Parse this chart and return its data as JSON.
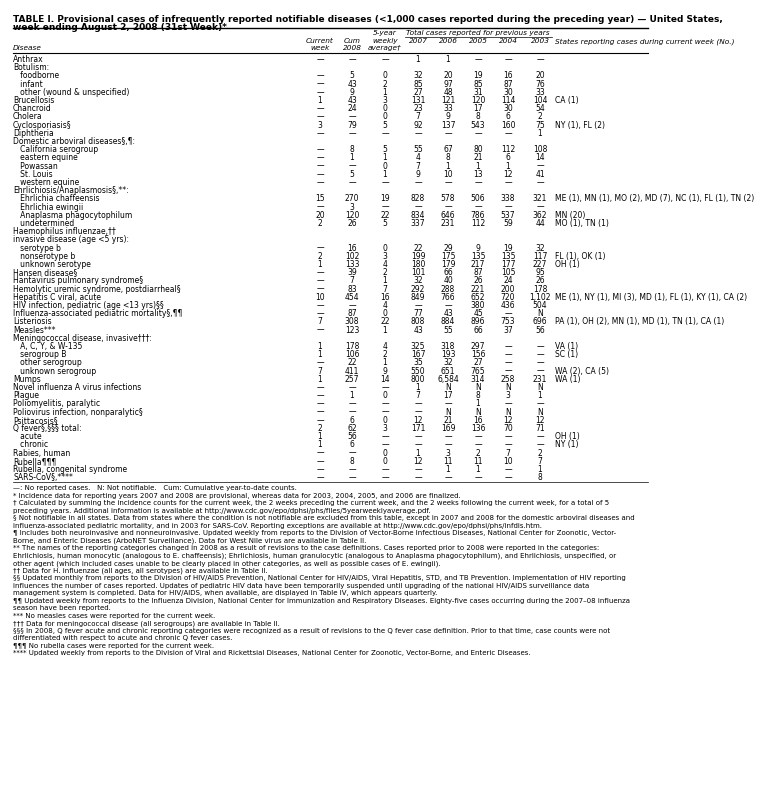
{
  "title1": "TABLE I. Provisional cases of infrequently reported notifiable diseases (<1,000 cases reported during the preceding year) — United States,",
  "title2": "week ending August 2, 2008 (31st Week)*",
  "col_headers_line1": [
    "",
    "Current",
    "Cum",
    "5-year",
    "Total cases reported for previous years",
    "",
    "",
    "",
    "",
    "States reporting cases during current week (No.)"
  ],
  "col_headers_line2": [
    "Disease",
    "week",
    "2008",
    "weekly",
    "2007",
    "2006",
    "2005",
    "2004",
    "2003",
    ""
  ],
  "col_headers_line3": [
    "",
    "",
    "",
    "average†",
    "",
    "",
    "",
    "",
    "",
    ""
  ],
  "rows": [
    [
      "Anthrax",
      "—",
      "—",
      "—",
      "1",
      "1",
      "—",
      "—",
      "—",
      ""
    ],
    [
      "Botulism:",
      "",
      "",
      "",
      "",
      "",
      "",
      "",
      "",
      ""
    ],
    [
      "   foodborne",
      "—",
      "5",
      "0",
      "32",
      "20",
      "19",
      "16",
      "20",
      ""
    ],
    [
      "   infant",
      "—",
      "43",
      "2",
      "85",
      "97",
      "85",
      "87",
      "76",
      ""
    ],
    [
      "   other (wound & unspecified)",
      "—",
      "9",
      "1",
      "27",
      "48",
      "31",
      "30",
      "33",
      ""
    ],
    [
      "Brucellosis",
      "1",
      "43",
      "3",
      "131",
      "121",
      "120",
      "114",
      "104",
      "CA (1)"
    ],
    [
      "Chancroid",
      "—",
      "24",
      "0",
      "23",
      "33",
      "17",
      "30",
      "54",
      ""
    ],
    [
      "Cholera",
      "—",
      "—",
      "0",
      "7",
      "9",
      "8",
      "6",
      "2",
      ""
    ],
    [
      "Cyclosporiasis§",
      "3",
      "79",
      "5",
      "92",
      "137",
      "543",
      "160",
      "75",
      "NY (1), FL (2)"
    ],
    [
      "Diphtheria",
      "—",
      "—",
      "—",
      "—",
      "—",
      "—",
      "—",
      "1",
      ""
    ],
    [
      "Domestic arboviral diseases§,¶:",
      "",
      "",
      "",
      "",
      "",
      "",
      "",
      "",
      ""
    ],
    [
      "   California serogroup",
      "—",
      "8",
      "5",
      "55",
      "67",
      "80",
      "112",
      "108",
      ""
    ],
    [
      "   eastern equine",
      "—",
      "1",
      "1",
      "4",
      "8",
      "21",
      "6",
      "14",
      ""
    ],
    [
      "   Powassan",
      "—",
      "—",
      "0",
      "7",
      "1",
      "1",
      "1",
      "—",
      ""
    ],
    [
      "   St. Louis",
      "—",
      "5",
      "1",
      "9",
      "10",
      "13",
      "12",
      "41",
      ""
    ],
    [
      "   western equine",
      "—",
      "—",
      "—",
      "—",
      "—",
      "—",
      "—",
      "—",
      ""
    ],
    [
      "Ehrlichiosis/Anaplasmosis§,**:",
      "",
      "",
      "",
      "",
      "",
      "",
      "",
      "",
      ""
    ],
    [
      "   Ehrlichia chaffeensis",
      "15",
      "270",
      "19",
      "828",
      "578",
      "506",
      "338",
      "321",
      "ME (1), MN (1), MO (2), MD (7), NC (1), FL (1), TN (2)"
    ],
    [
      "   Ehrlichia ewingii",
      "—",
      "3",
      "—",
      "—",
      "—",
      "—",
      "—",
      "—",
      ""
    ],
    [
      "   Anaplasma phagocytophilum",
      "20",
      "120",
      "22",
      "834",
      "646",
      "786",
      "537",
      "362",
      "MN (20)"
    ],
    [
      "   undetermined",
      "2",
      "26",
      "5",
      "337",
      "231",
      "112",
      "59",
      "44",
      "MO (1), TN (1)"
    ],
    [
      "Haemophilus influenzae,††",
      "",
      "",
      "",
      "",
      "",
      "",
      "",
      "",
      ""
    ],
    [
      "invasive disease (age <5 yrs):",
      "",
      "",
      "",
      "",
      "",
      "",
      "",
      "",
      ""
    ],
    [
      "   serotype b",
      "—",
      "16",
      "0",
      "22",
      "29",
      "9",
      "19",
      "32",
      ""
    ],
    [
      "   nonserotype b",
      "2",
      "102",
      "3",
      "199",
      "175",
      "135",
      "135",
      "117",
      "FL (1), OK (1)"
    ],
    [
      "   unknown serotype",
      "1",
      "133",
      "4",
      "180",
      "179",
      "217",
      "177",
      "227",
      "OH (1)"
    ],
    [
      "Hansen disease§",
      "—",
      "39",
      "2",
      "101",
      "66",
      "87",
      "105",
      "95",
      ""
    ],
    [
      "Hantavirus pulmonary syndrome§",
      "—",
      "7",
      "1",
      "32",
      "40",
      "26",
      "24",
      "26",
      ""
    ],
    [
      "Hemolytic uremic syndrome, postdiarrheal§",
      "—",
      "83",
      "7",
      "292",
      "288",
      "221",
      "200",
      "178",
      ""
    ],
    [
      "Hepatitis C viral, acute",
      "10",
      "454",
      "16",
      "849",
      "766",
      "652",
      "720",
      "1,102",
      "ME (1), NY (1), MI (3), MD (1), FL (1), KY (1), CA (2)"
    ],
    [
      "HIV infection, pediatric (age <13 yrs)§§",
      "—",
      "—",
      "4",
      "—",
      "—",
      "380",
      "436",
      "504",
      ""
    ],
    [
      "Influenza-associated pediatric mortality§,¶¶",
      "—",
      "87",
      "0",
      "77",
      "43",
      "45",
      "—",
      "N",
      ""
    ],
    [
      "Listeriosis",
      "7",
      "308",
      "22",
      "808",
      "884",
      "896",
      "753",
      "696",
      "PA (1), OH (2), MN (1), MD (1), TN (1), CA (1)"
    ],
    [
      "Measles***",
      "—",
      "123",
      "1",
      "43",
      "55",
      "66",
      "37",
      "56",
      ""
    ],
    [
      "Meningococcal disease, invasive†††:",
      "",
      "",
      "",
      "",
      "",
      "",
      "",
      "",
      ""
    ],
    [
      "   A, C, Y, & W-135",
      "1",
      "178",
      "4",
      "325",
      "318",
      "297",
      "—",
      "—",
      "VA (1)"
    ],
    [
      "   serogroup B",
      "1",
      "106",
      "2",
      "167",
      "193",
      "156",
      "—",
      "—",
      "SC (1)"
    ],
    [
      "   other serogroup",
      "—",
      "22",
      "1",
      "35",
      "32",
      "27",
      "—",
      "—",
      ""
    ],
    [
      "   unknown serogroup",
      "7",
      "411",
      "9",
      "550",
      "651",
      "765",
      "—",
      "—",
      "WA (2), CA (5)"
    ],
    [
      "Mumps",
      "1",
      "257",
      "14",
      "800",
      "6,584",
      "314",
      "258",
      "231",
      "WA (1)"
    ],
    [
      "Novel influenza A virus infections",
      "—",
      "—",
      "—",
      "1",
      "N",
      "N",
      "N",
      "N",
      ""
    ],
    [
      "Plague",
      "—",
      "1",
      "0",
      "7",
      "17",
      "8",
      "3",
      "1",
      ""
    ],
    [
      "Poliomyelitis, paralytic",
      "—",
      "—",
      "—",
      "—",
      "—",
      "1",
      "—",
      "—",
      ""
    ],
    [
      "Poliovirus infection, nonparalytic§",
      "—",
      "—",
      "—",
      "—",
      "N",
      "N",
      "N",
      "N",
      ""
    ],
    [
      "Psittacosis§",
      "—",
      "6",
      "0",
      "12",
      "21",
      "16",
      "12",
      "12",
      ""
    ],
    [
      "Q fever§,§§§ total:",
      "2",
      "62",
      "3",
      "171",
      "169",
      "136",
      "70",
      "71",
      ""
    ],
    [
      "   acute",
      "1",
      "56",
      "—",
      "—",
      "—",
      "—",
      "—",
      "—",
      "OH (1)"
    ],
    [
      "   chronic",
      "1",
      "6",
      "—",
      "—",
      "—",
      "—",
      "—",
      "—",
      "NY (1)"
    ],
    [
      "Rabies, human",
      "—",
      "—",
      "0",
      "1",
      "3",
      "2",
      "7",
      "2",
      ""
    ],
    [
      "Rubella¶¶¶",
      "—",
      "8",
      "0",
      "12",
      "11",
      "11",
      "10",
      "7",
      ""
    ],
    [
      "Rubella, congenital syndrome",
      "—",
      "—",
      "—",
      "—",
      "1",
      "1",
      "—",
      "1",
      ""
    ],
    [
      "SARS-CoV§,****",
      "—",
      "—",
      "—",
      "—",
      "—",
      "—",
      "—",
      "8",
      ""
    ]
  ],
  "footnotes": [
    "—: No reported cases.   N: Not notifiable.   Cum: Cumulative year-to-date counts.",
    "* Incidence data for reporting years 2007 and 2008 are provisional, whereas data for 2003, 2004, 2005, and 2006 are finalized.",
    "† Calculated by summing the incidence counts for the current week, the 2 weeks preceding the current week, and the 2 weeks following the current week, for a total of 5",
    "preceding years. Additional information is available at http://www.cdc.gov/epo/dphsi/phs/files/5yearweeklyaverage.pdf.",
    "§ Not notifiable in all states. Data from states where the condition is not notifiable are excluded from this table, except in 2007 and 2008 for the domestic arboviral diseases and",
    "influenza-associated pediatric mortality, and in 2003 for SARS-CoV. Reporting exceptions are available at http://www.cdc.gov/epo/dphsi/phs/infdis.htm.",
    "¶ Includes both neuroinvasive and nonneuroinvasive. Updated weekly from reports to the Division of Vector-Borne Infectious Diseases, National Center for Zoonotic, Vector-",
    "Borne, and Enteric Diseases (ArboNET Surveillance). Data for West Nile virus are available in Table II.",
    "** The names of the reporting categories changed in 2008 as a result of revisions to the case definitions. Cases reported prior to 2008 were reported in the categories:",
    "Ehrlichiosis, human monocytic (analogous to E. chaffeensis); Ehrlichiosis, human granulocytic (analogous to Anaplasma phagocytophilum), and Ehrlichiosis, unspecified, or",
    "other agent (which included cases unable to be clearly placed in other categories, as well as possible cases of E. ewingii).",
    "†† Data for H. influenzae (all ages, all serotypes) are available in Table II.",
    "§§ Updated monthly from reports to the Division of HIV/AIDS Prevention, National Center for HIV/AIDS, Viral Hepatitis, STD, and TB Prevention. Implementation of HIV reporting",
    "influences the number of cases reported. Updates of pediatric HIV data have been temporarily suspended until upgrading of the national HIV/AIDS surveillance data",
    "management system is completed. Data for HIV/AIDS, when available, are displayed in Table IV, which appears quarterly.",
    "¶¶ Updated weekly from reports to the Influenza Division, National Center for Immunization and Respiratory Diseases. Eighty-five cases occurring during the 2007–08 influenza",
    "season have been reported.",
    "*** No measles cases were reported for the current week.",
    "††† Data for meningococcal disease (all serogroups) are available in Table II.",
    "§§§ In 2008, Q fever acute and chronic reporting categories were recognized as a result of revisions to the Q fever case definition. Prior to that time, case counts were not",
    "differentiated with respect to acute and chronic Q fever cases.",
    "¶¶¶ No rubella cases were reported for the current week.",
    "**** Updated weekly from reports to the Division of Viral and Rickettsial Diseases, National Center for Zoonotic, Vector-Borne, and Enteric Diseases."
  ],
  "bg_color": "#ffffff",
  "text_color": "#000000"
}
